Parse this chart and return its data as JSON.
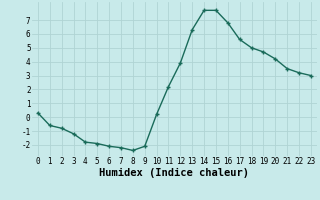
{
  "x": [
    0,
    1,
    2,
    3,
    4,
    5,
    6,
    7,
    8,
    9,
    10,
    11,
    12,
    13,
    14,
    15,
    16,
    17,
    18,
    19,
    20,
    21,
    22,
    23
  ],
  "y": [
    0.3,
    -0.6,
    -0.8,
    -1.2,
    -1.8,
    -1.9,
    -2.1,
    -2.2,
    -2.4,
    -2.1,
    0.2,
    2.2,
    3.9,
    6.3,
    7.7,
    7.7,
    6.8,
    5.6,
    5.0,
    4.7,
    4.2,
    3.5,
    3.2,
    3.0
  ],
  "line_color": "#1a6b5a",
  "marker": "+",
  "marker_size": 3.5,
  "marker_linewidth": 1.0,
  "background_color": "#c8eaea",
  "grid_color": "#b0d4d4",
  "xlabel": "Humidex (Indice chaleur)",
  "xlim": [
    -0.5,
    23.5
  ],
  "ylim": [
    -2.8,
    8.3
  ],
  "yticks": [
    -2,
    -1,
    0,
    1,
    2,
    3,
    4,
    5,
    6,
    7
  ],
  "xticks": [
    0,
    1,
    2,
    3,
    4,
    5,
    6,
    7,
    8,
    9,
    10,
    11,
    12,
    13,
    14,
    15,
    16,
    17,
    18,
    19,
    20,
    21,
    22,
    23
  ],
  "tick_fontsize": 5.5,
  "xlabel_fontsize": 7.5,
  "line_width": 1.0
}
